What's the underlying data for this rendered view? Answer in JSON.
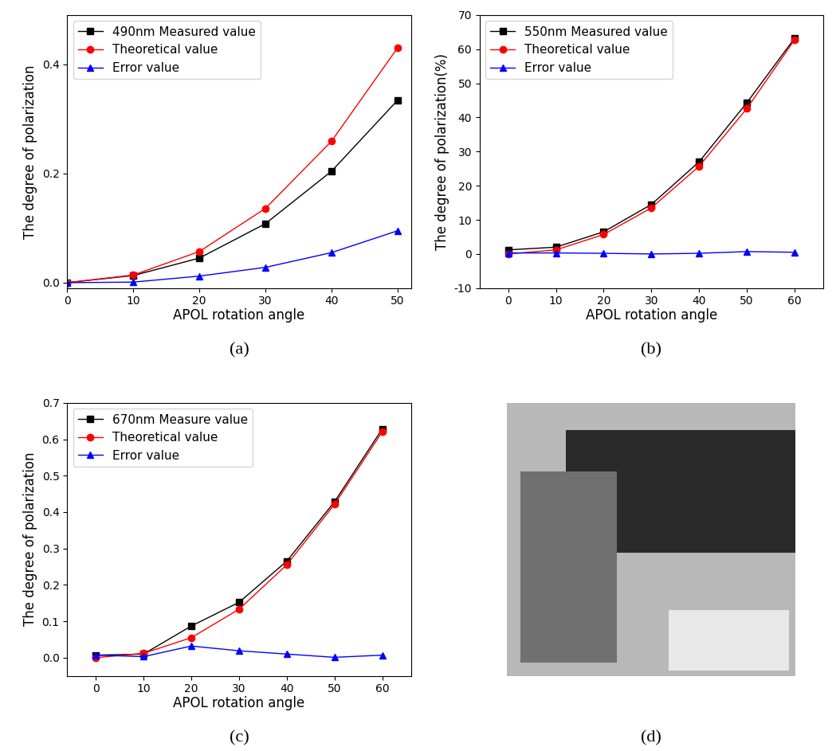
{
  "chart_data": [
    {
      "type": "line",
      "caption": "(a)",
      "xlabel": "APOL rotation angle",
      "ylabel": "The degree of polarization",
      "x": [
        0,
        10,
        20,
        30,
        40,
        50
      ],
      "series": [
        {
          "name": "490nm Measured value",
          "color": "#000000",
          "marker": "square",
          "values": [
            0.0,
            0.013,
            0.045,
            0.108,
            0.204,
            0.334
          ]
        },
        {
          "name": "Theoretical value",
          "color": "#ff0000",
          "marker": "circle",
          "values": [
            0.0,
            0.014,
            0.057,
            0.136,
            0.259,
            0.43
          ]
        },
        {
          "name": "Error value",
          "color": "#0000ff",
          "marker": "triangle",
          "values": [
            0.0,
            0.001,
            0.012,
            0.028,
            0.055,
            0.095
          ]
        }
      ],
      "xlim": [
        0,
        52
      ],
      "xticks": [
        0,
        10,
        20,
        30,
        40,
        50
      ],
      "ylim": [
        -0.01,
        0.49
      ],
      "yticks": [
        {
          "value": 0,
          "label": "0.0"
        },
        0.2,
        0.4
      ],
      "legend": "upper left"
    },
    {
      "type": "line",
      "caption": "(b)",
      "xlabel": "APOL rotation angle",
      "ylabel": "The degree of polarization(%)",
      "x": [
        0,
        10,
        20,
        30,
        40,
        50,
        60
      ],
      "series": [
        {
          "name": "550nm Measured value",
          "color": "#000000",
          "marker": "square",
          "values": [
            1.2,
            2.0,
            6.5,
            14.5,
            27.0,
            44.3,
            63.2
          ]
        },
        {
          "name": "Theoretical value",
          "color": "#ff0000",
          "marker": "circle",
          "values": [
            0.0,
            1.2,
            5.7,
            13.5,
            25.7,
            42.6,
            62.7
          ]
        },
        {
          "name": "Error value",
          "color": "#0000ff",
          "marker": "triangle",
          "values": [
            0.3,
            0.3,
            0.2,
            0.0,
            0.2,
            0.7,
            0.5
          ]
        }
      ],
      "xlim": [
        -6,
        66
      ],
      "xticks": [
        0,
        10,
        20,
        30,
        40,
        50,
        60
      ],
      "ylim": [
        -10,
        70
      ],
      "yticks": [
        -10,
        0,
        10,
        20,
        30,
        40,
        50,
        60,
        70
      ],
      "legend": "upper left"
    },
    {
      "type": "line",
      "caption": "(c)",
      "xlabel": "APOL rotation angle",
      "ylabel": "The degree of polarization",
      "x": [
        0,
        10,
        20,
        30,
        40,
        50,
        60
      ],
      "series": [
        {
          "name": "670nm Measure value",
          "color": "#000000",
          "marker": "square",
          "values": [
            0.007,
            0.01,
            0.087,
            0.152,
            0.265,
            0.428,
            0.628
          ]
        },
        {
          "name": "Theoretical value",
          "color": "#ff0000",
          "marker": "circle",
          "values": [
            0.0,
            0.012,
            0.055,
            0.133,
            0.255,
            0.421,
            0.62
          ]
        },
        {
          "name": "Error value",
          "color": "#0000ff",
          "marker": "triangle",
          "values": [
            0.007,
            0.003,
            0.032,
            0.019,
            0.01,
            0.001,
            0.007
          ]
        }
      ],
      "xlim": [
        -6,
        66
      ],
      "xticks": [
        0,
        10,
        20,
        30,
        40,
        50,
        60
      ],
      "ylim": [
        -0.05,
        0.7
      ],
      "yticks": [
        {
          "value": 0,
          "label": "0.0"
        },
        0.1,
        0.2,
        0.3,
        0.4,
        0.5,
        0.6,
        0.7
      ],
      "legend": "upper left"
    },
    {
      "type": "image",
      "caption": "(d)"
    }
  ]
}
